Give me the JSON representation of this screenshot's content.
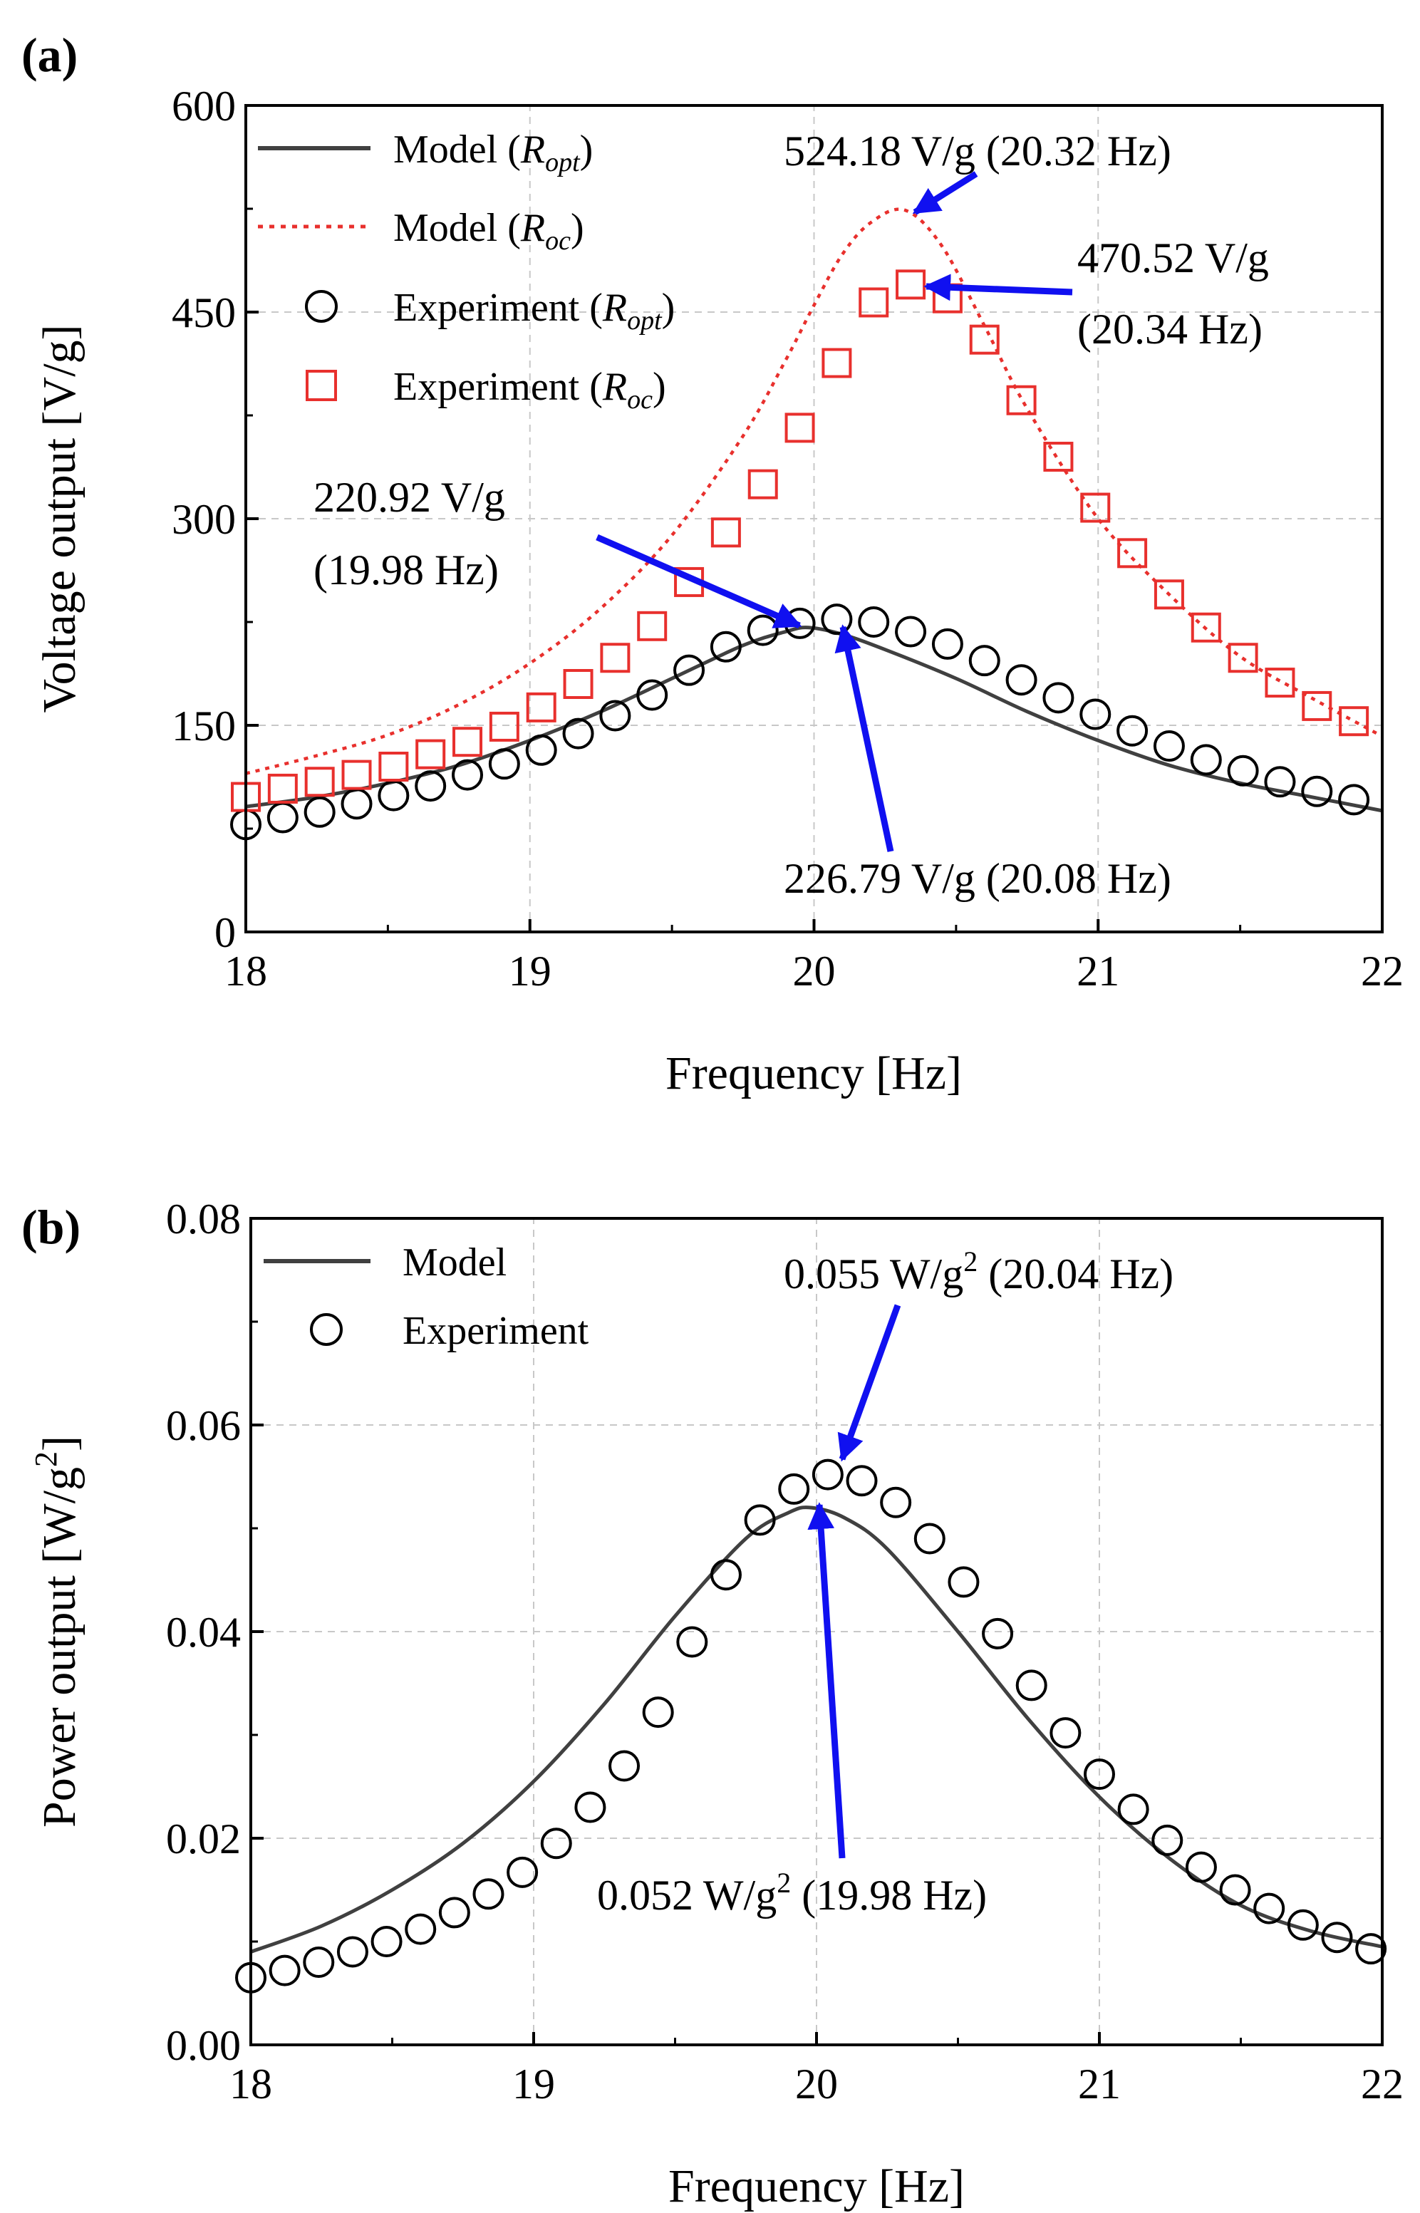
{
  "chart_data": [
    {
      "type": "line",
      "panel_label": "(a)",
      "xlabel": "Frequency [Hz]",
      "ylabel": "Voltage output [V/g]",
      "xlim": [
        18,
        22
      ],
      "ylim": [
        0,
        600
      ],
      "xticks": [
        18,
        19,
        20,
        21,
        22
      ],
      "xtick_labels": [
        "18",
        "19",
        "20",
        "21",
        "22"
      ],
      "yticks": [
        0,
        150,
        300,
        450,
        600
      ],
      "ytick_labels": [
        "0",
        "150",
        "300",
        "450",
        "600"
      ],
      "grid": true,
      "legend_position": "top-left",
      "series": [
        {
          "name": "Model (R_opt)",
          "legend": {
            "base": "Model (",
            "italic": "R",
            "sub": "opt",
            "tail": ")"
          },
          "style": "solid-line",
          "color": "#404040",
          "x": [
            18.0,
            18.25,
            18.5,
            18.75,
            19.0,
            19.25,
            19.5,
            19.75,
            19.9,
            19.98,
            20.1,
            20.25,
            20.5,
            20.75,
            21.0,
            21.25,
            21.5,
            21.75,
            22.0
          ],
          "y": [
            91,
            98,
            108,
            121,
            139,
            160,
            184,
            208,
            218,
            221,
            216,
            205,
            184,
            160,
            139,
            121,
            108,
            98,
            88
          ]
        },
        {
          "name": "Model (R_oc)",
          "legend": {
            "base": "Model (",
            "italic": "R",
            "sub": "oc",
            "tail": ")"
          },
          "style": "dotted-line",
          "color": "#e8302d",
          "x": [
            18.0,
            18.25,
            18.5,
            18.75,
            19.0,
            19.25,
            19.5,
            19.75,
            19.9,
            20.0,
            20.1,
            20.2,
            20.32,
            20.45,
            20.6,
            20.75,
            21.0,
            21.25,
            21.5,
            21.75,
            22.0
          ],
          "y": [
            115,
            128,
            143,
            165,
            195,
            235,
            288,
            360,
            415,
            455,
            492,
            515,
            524,
            498,
            440,
            380,
            300,
            245,
            200,
            170,
            142
          ]
        },
        {
          "name": "Experiment (R_opt)",
          "legend": {
            "base": "Experiment (",
            "italic": "R",
            "sub": "opt",
            "tail": ")"
          },
          "style": "open-circle",
          "color": "#000000",
          "x": [
            18.0,
            18.13,
            18.26,
            18.39,
            18.52,
            18.65,
            18.78,
            18.91,
            19.04,
            19.17,
            19.3,
            19.43,
            19.56,
            19.69,
            19.82,
            19.95,
            20.08,
            20.21,
            20.34,
            20.47,
            20.6,
            20.73,
            20.86,
            20.99,
            21.12,
            21.25,
            21.38,
            21.51,
            21.64,
            21.77,
            21.9
          ],
          "y": [
            78,
            83,
            87,
            93,
            99,
            106,
            114,
            122,
            132,
            144,
            157,
            172,
            190,
            207,
            219,
            224,
            227,
            225,
            218,
            209,
            197,
            183,
            170,
            158,
            146,
            135,
            125,
            117,
            109,
            102,
            96
          ]
        },
        {
          "name": "Experiment (R_oc)",
          "legend": {
            "base": "Experiment (",
            "italic": "R",
            "sub": "oc",
            "tail": ")"
          },
          "style": "open-square",
          "color": "#e8302d",
          "x": [
            18.0,
            18.13,
            18.26,
            18.39,
            18.52,
            18.65,
            18.78,
            18.91,
            19.04,
            19.17,
            19.3,
            19.43,
            19.56,
            19.69,
            19.82,
            19.95,
            20.08,
            20.21,
            20.34,
            20.47,
            20.6,
            20.73,
            20.86,
            20.99,
            21.12,
            21.25,
            21.38,
            21.51,
            21.64,
            21.77,
            21.9
          ],
          "y": [
            98,
            104,
            109,
            114,
            120,
            129,
            138,
            149,
            163,
            180,
            199,
            222,
            254,
            290,
            325,
            366,
            413,
            457,
            470,
            460,
            430,
            386,
            345,
            308,
            275,
            245,
            221,
            199,
            181,
            164,
            153
          ]
        }
      ],
      "annotations": [
        {
          "lines": [
            "524.18 V/g (20.32 Hz)"
          ],
          "point": [
            20.32,
            524.18
          ]
        },
        {
          "lines": [
            "470.52 V/g",
            "(20.34 Hz)"
          ],
          "point": [
            20.34,
            470.52
          ]
        },
        {
          "lines": [
            "220.92 V/g",
            "(19.98 Hz)"
          ],
          "point": [
            19.98,
            220.92
          ]
        },
        {
          "lines": [
            "226.79 V/g (20.08 Hz)"
          ],
          "point": [
            20.08,
            226.79
          ]
        }
      ]
    },
    {
      "type": "line",
      "panel_label": "(b)",
      "xlabel": "Frequency [Hz]",
      "ylabel": {
        "base": "Power output [W/g",
        "sup": "2",
        "tail": "]"
      },
      "xlim": [
        18,
        22
      ],
      "ylim": [
        0,
        0.08
      ],
      "xticks": [
        18,
        19,
        20,
        21,
        22
      ],
      "xtick_labels": [
        "18",
        "19",
        "20",
        "21",
        "22"
      ],
      "yticks": [
        0,
        0.02,
        0.04,
        0.06,
        0.08
      ],
      "ytick_labels": [
        "0.00",
        "0.02",
        "0.04",
        "0.06",
        "0.08"
      ],
      "grid": true,
      "legend_position": "top-left",
      "series": [
        {
          "name": "Model",
          "legend": {
            "base": "Model"
          },
          "style": "solid-line",
          "color": "#404040",
          "x": [
            18.0,
            18.25,
            18.5,
            18.75,
            19.0,
            19.25,
            19.5,
            19.75,
            19.9,
            19.98,
            20.1,
            20.25,
            20.5,
            20.75,
            21.0,
            21.25,
            21.5,
            21.75,
            22.0
          ],
          "y": [
            0.009,
            0.0115,
            0.015,
            0.0195,
            0.0255,
            0.033,
            0.0415,
            0.049,
            0.0515,
            0.052,
            0.051,
            0.048,
            0.04,
            0.0315,
            0.024,
            0.018,
            0.0135,
            0.011,
            0.0095
          ]
        },
        {
          "name": "Experiment",
          "legend": {
            "base": "Experiment"
          },
          "style": "open-circle",
          "color": "#000000",
          "x": [
            18.0,
            18.12,
            18.24,
            18.36,
            18.48,
            18.6,
            18.72,
            18.84,
            18.96,
            19.08,
            19.2,
            19.32,
            19.44,
            19.56,
            19.68,
            19.8,
            19.92,
            20.04,
            20.16,
            20.28,
            20.4,
            20.52,
            20.64,
            20.76,
            20.88,
            21.0,
            21.12,
            21.24,
            21.36,
            21.48,
            21.6,
            21.72,
            21.84,
            21.96
          ],
          "y": [
            0.0065,
            0.0072,
            0.008,
            0.009,
            0.01,
            0.0112,
            0.0128,
            0.0146,
            0.0167,
            0.0195,
            0.023,
            0.027,
            0.0322,
            0.039,
            0.0455,
            0.0508,
            0.0538,
            0.0552,
            0.0546,
            0.0525,
            0.049,
            0.0448,
            0.0398,
            0.0348,
            0.0302,
            0.0262,
            0.0228,
            0.0198,
            0.0172,
            0.015,
            0.0132,
            0.0116,
            0.0104,
            0.0093
          ]
        }
      ],
      "annotations": [
        {
          "lines": [
            "0.055 W/g",
            "2",
            " (20.04 Hz)"
          ],
          "point": [
            20.04,
            0.055
          ]
        },
        {
          "lines": [
            "0.052 W/g",
            "2",
            " (19.98 Hz)"
          ],
          "point": [
            19.98,
            0.052
          ]
        }
      ]
    }
  ]
}
